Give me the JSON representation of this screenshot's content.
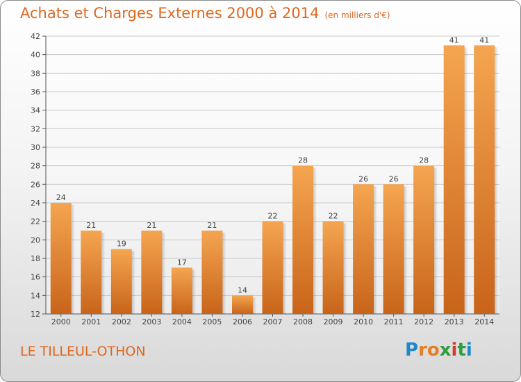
{
  "page": {
    "title": "Achats et Charges Externes 2000 à 2014",
    "subtitle": "(en milliers d'€)",
    "location": "LE TILLEUL-OTHON",
    "logo": "Proxiti",
    "logo_letters": [
      "P",
      "r",
      "o",
      "x",
      "i",
      "t",
      "i"
    ],
    "logo_colors": [
      "#1e88c9",
      "#e67e22",
      "#e67e22",
      "#2e9e3e",
      "#d83a2a",
      "#2e9e3e",
      "#1e88c9"
    ]
  },
  "colors": {
    "accent": "#e0661c",
    "bar_top": "#f5a550",
    "bar_bottom": "#c8641a",
    "grid": "#c8c8c8"
  },
  "chart_data": {
    "type": "bar",
    "categories": [
      "2000",
      "2001",
      "2002",
      "2003",
      "2004",
      "2005",
      "2006",
      "2007",
      "2008",
      "2009",
      "2010",
      "2011",
      "2012",
      "2013",
      "2014"
    ],
    "values": [
      24,
      21,
      19,
      21,
      17,
      21,
      14,
      22,
      28,
      22,
      26,
      26,
      28,
      41,
      41
    ],
    "ylim": [
      12,
      42
    ],
    "yticks": [
      12,
      14,
      16,
      18,
      20,
      22,
      24,
      26,
      28,
      30,
      32,
      34,
      36,
      38,
      40,
      42
    ],
    "grid": true,
    "legend": "none",
    "xlabel": "",
    "ylabel": ""
  }
}
